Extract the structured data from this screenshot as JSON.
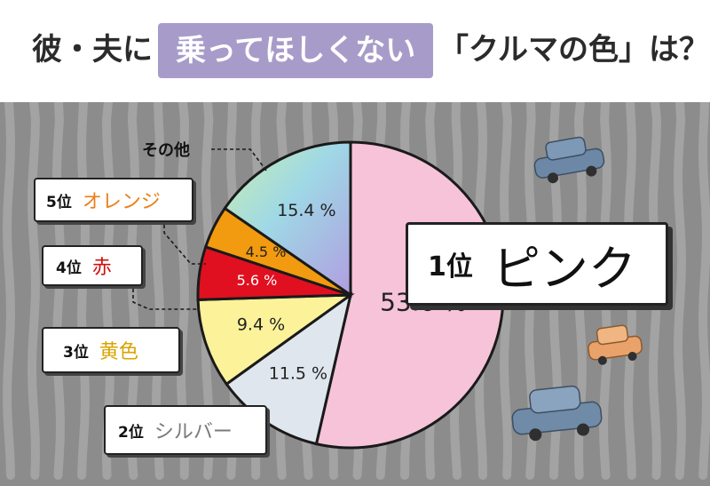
{
  "title": {
    "left": "彼・夫に",
    "highlight": "乗ってほしくない",
    "right": "「クルマの色」は？"
  },
  "colors": {
    "header_highlight": "#a79cc9",
    "background": "#8c8c8c",
    "pink": "#f6c3d8",
    "silver": "#dfe6ee",
    "yellow": "#fbf29a",
    "red": "#e01020",
    "orange": "#f29a10",
    "other": "#a9d6c8"
  },
  "chart_data": {
    "type": "pie",
    "start_angle_deg": 0,
    "direction": "clockwise",
    "slices": [
      {
        "key": "pink",
        "rank": "1位",
        "name": "ピンク",
        "value": 53.6,
        "value_label": "53.6 %",
        "color": "#f6c3d8",
        "label_color": "#222222"
      },
      {
        "key": "silver",
        "rank": "2位",
        "name": "シルバー",
        "value": 11.5,
        "value_label": "11.5 %",
        "color": "#dfe6ee",
        "label_color": "#222222"
      },
      {
        "key": "yellow",
        "rank": "3位",
        "name": "黄色",
        "value": 9.4,
        "value_label": "9.4 %",
        "color": "#fbf29a",
        "label_color": "#222222"
      },
      {
        "key": "red",
        "rank": "4位",
        "name": "赤",
        "value": 5.6,
        "value_label": "5.6 %",
        "color": "#e01020",
        "label_color": "#ffffff"
      },
      {
        "key": "orange",
        "rank": "5位",
        "name": "オレンジ",
        "value": 4.5,
        "value_label": "4.5 %",
        "color": "#f29a10",
        "label_color": "#222222"
      },
      {
        "key": "other",
        "rank": "",
        "name": "その他",
        "value": 15.4,
        "value_label": "15.4 %",
        "color": "#a9d6c8",
        "label_color": "#222222"
      }
    ]
  }
}
